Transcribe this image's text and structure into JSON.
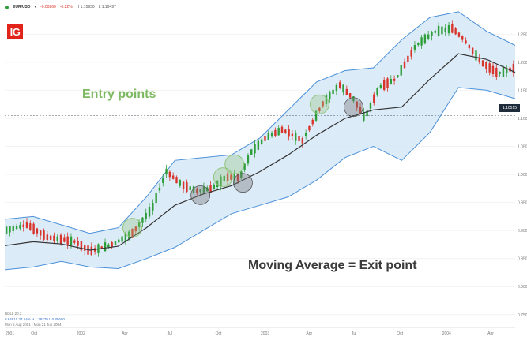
{
  "header": {
    "symbol": "EUR/USD",
    "change": "-0.00260",
    "change_pct": "-0.22%",
    "high": "H 1.10936",
    "low": "L 1.10497"
  },
  "logo": {
    "text": "IG",
    "color": "#e2231a"
  },
  "annotations": {
    "entry": "Entry points",
    "exit": "Moving Average = Exit point"
  },
  "legend": {
    "indicator": "BOLL 20 2",
    "values": "0.84810   37.64%   H 1.29270   L 0.85600",
    "range": "Mon 6 Aug 2001 - Mon 21 Jun 2004"
  },
  "current_price": "1.10515",
  "chart_data": {
    "type": "candlestick",
    "indicator": "Bollinger Bands (20, 2) with 20-period moving average",
    "ylim": [
      0.73,
      1.28
    ],
    "y_ticks": [
      0.75,
      0.8,
      0.85,
      0.9,
      0.95,
      1.0,
      1.05,
      1.1,
      1.15,
      1.2,
      1.25
    ],
    "y_tick_labels": [
      "0.75000",
      "0.80000",
      "0.85000",
      "0.90000",
      "0.95000",
      "1.00000",
      "1.05000",
      "1.10000",
      "1.15000",
      "1.20000",
      "1.25000"
    ],
    "x_ticks": [
      {
        "t": 0.0,
        "label": "2001"
      },
      {
        "t": 0.09,
        "label": "Oct"
      },
      {
        "t": 0.25,
        "label": "2002"
      },
      {
        "t": 0.41,
        "label": "Apr"
      },
      {
        "t": 0.57,
        "label": "Jul"
      },
      {
        "t": 0.74,
        "label": "Oct"
      },
      {
        "t": 0.9,
        "label": "2003"
      },
      {
        "t": 1.06,
        "label": "Apr"
      },
      {
        "t": 1.22,
        "label": "Jul"
      },
      {
        "t": 1.38,
        "label": "Oct"
      },
      {
        "t": 1.54,
        "label": "2004"
      },
      {
        "t": 1.7,
        "label": "Apr"
      }
    ],
    "moving_average": [
      [
        0.0,
        0.873
      ],
      [
        0.1,
        0.88
      ],
      [
        0.2,
        0.876
      ],
      [
        0.3,
        0.865
      ],
      [
        0.4,
        0.872
      ],
      [
        0.5,
        0.905
      ],
      [
        0.6,
        0.945
      ],
      [
        0.7,
        0.965
      ],
      [
        0.8,
        0.98
      ],
      [
        0.9,
        1.005
      ],
      [
        1.0,
        1.035
      ],
      [
        1.1,
        1.07
      ],
      [
        1.2,
        1.1
      ],
      [
        1.3,
        1.115
      ],
      [
        1.4,
        1.12
      ],
      [
        1.5,
        1.17
      ],
      [
        1.6,
        1.215
      ],
      [
        1.7,
        1.205
      ],
      [
        1.8,
        1.182
      ]
    ],
    "upper_band": [
      [
        0.0,
        0.92
      ],
      [
        0.1,
        0.925
      ],
      [
        0.2,
        0.91
      ],
      [
        0.3,
        0.895
      ],
      [
        0.4,
        0.905
      ],
      [
        0.5,
        0.96
      ],
      [
        0.6,
        1.025
      ],
      [
        0.7,
        1.03
      ],
      [
        0.8,
        1.035
      ],
      [
        0.9,
        1.065
      ],
      [
        1.0,
        1.115
      ],
      [
        1.1,
        1.165
      ],
      [
        1.2,
        1.185
      ],
      [
        1.3,
        1.19
      ],
      [
        1.4,
        1.24
      ],
      [
        1.5,
        1.28
      ],
      [
        1.6,
        1.29
      ],
      [
        1.7,
        1.255
      ],
      [
        1.8,
        1.23
      ]
    ],
    "lower_band": [
      [
        0.0,
        0.83
      ],
      [
        0.1,
        0.835
      ],
      [
        0.2,
        0.845
      ],
      [
        0.3,
        0.835
      ],
      [
        0.4,
        0.832
      ],
      [
        0.5,
        0.85
      ],
      [
        0.6,
        0.87
      ],
      [
        0.7,
        0.9
      ],
      [
        0.8,
        0.93
      ],
      [
        0.9,
        0.945
      ],
      [
        1.0,
        0.96
      ],
      [
        1.1,
        0.99
      ],
      [
        1.2,
        1.03
      ],
      [
        1.3,
        1.05
      ],
      [
        1.4,
        1.025
      ],
      [
        1.5,
        1.075
      ],
      [
        1.6,
        1.155
      ],
      [
        1.7,
        1.15
      ],
      [
        1.8,
        1.135
      ]
    ],
    "price_path": [
      [
        0.0,
        0.9
      ],
      [
        0.08,
        0.91
      ],
      [
        0.15,
        0.888
      ],
      [
        0.25,
        0.88
      ],
      [
        0.3,
        0.863
      ],
      [
        0.38,
        0.875
      ],
      [
        0.45,
        0.895
      ],
      [
        0.52,
        0.94
      ],
      [
        0.57,
        1.005
      ],
      [
        0.63,
        0.98
      ],
      [
        0.68,
        0.97
      ],
      [
        0.73,
        0.975
      ],
      [
        0.78,
        0.995
      ],
      [
        0.83,
        0.995
      ],
      [
        0.87,
        1.04
      ],
      [
        0.92,
        1.065
      ],
      [
        0.98,
        1.08
      ],
      [
        1.05,
        1.06
      ],
      [
        1.12,
        1.125
      ],
      [
        1.18,
        1.16
      ],
      [
        1.23,
        1.135
      ],
      [
        1.27,
        1.1
      ],
      [
        1.32,
        1.155
      ],
      [
        1.38,
        1.17
      ],
      [
        1.45,
        1.23
      ],
      [
        1.52,
        1.255
      ],
      [
        1.58,
        1.26
      ],
      [
        1.62,
        1.24
      ],
      [
        1.68,
        1.2
      ],
      [
        1.74,
        1.18
      ],
      [
        1.8,
        1.19
      ]
    ],
    "entry_points": [
      [
        0.45,
        0.905
      ],
      [
        0.77,
        0.995
      ],
      [
        0.81,
        1.018
      ],
      [
        1.11,
        1.125
      ]
    ],
    "exit_points": [
      [
        0.69,
        0.963
      ],
      [
        0.84,
        0.985
      ],
      [
        1.23,
        1.12
      ]
    ],
    "colors": {
      "up": "#2e9e3a",
      "down": "#d9342b",
      "band_fill": "#d6e8f7",
      "band_line": "#4a90d9",
      "moving_average": "#333333",
      "entry_circle": "#93c47d",
      "exit_circle": "#777777"
    }
  }
}
